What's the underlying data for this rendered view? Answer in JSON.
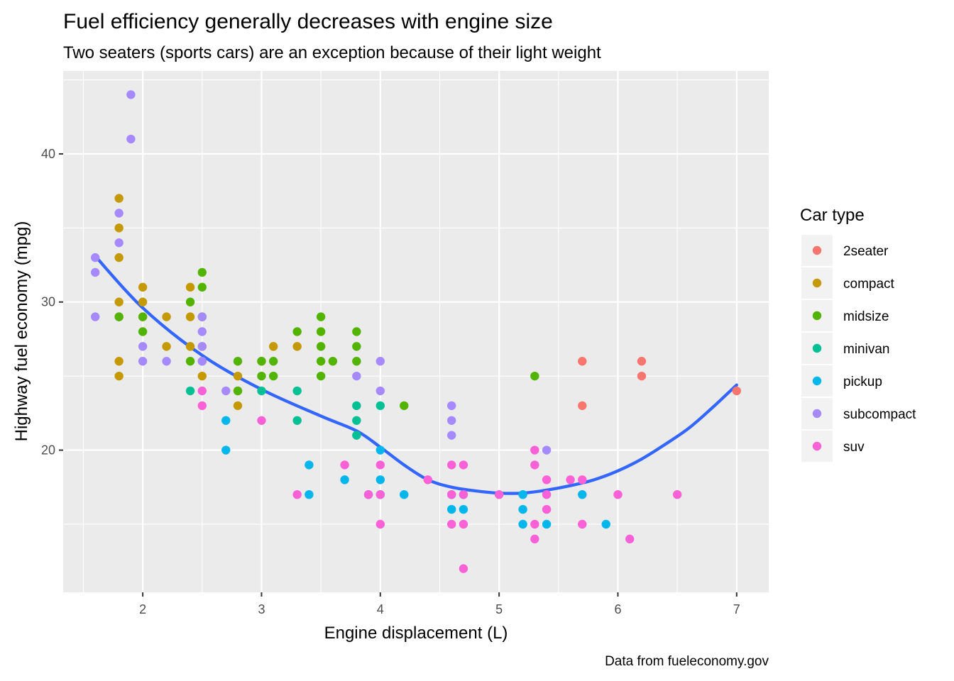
{
  "chart_data": {
    "type": "scatter",
    "title": "Fuel efficiency generally decreases with engine size",
    "subtitle": "Two seaters (sports cars) are an exception because of their light weight",
    "xlabel": "Engine displacement (L)",
    "ylabel": "Highway fuel economy (mpg)",
    "caption": "Data from fueleconomy.gov",
    "xlim": [
      1.33,
      7.27
    ],
    "ylim": [
      10.4,
      45.6
    ],
    "x_ticks": [
      2,
      3,
      4,
      5,
      6,
      7
    ],
    "y_ticks": [
      20,
      30,
      40
    ],
    "grid": true,
    "legend": {
      "title": "Car type",
      "position": "right",
      "items": [
        {
          "label": "2seater",
          "color": "#F8766D"
        },
        {
          "label": "compact",
          "color": "#C49A00"
        },
        {
          "label": "midsize",
          "color": "#53B400"
        },
        {
          "label": "minivan",
          "color": "#00C094"
        },
        {
          "label": "pickup",
          "color": "#00B6EB"
        },
        {
          "label": "subcompact",
          "color": "#A58AFF"
        },
        {
          "label": "suv",
          "color": "#FB61D7"
        }
      ]
    },
    "series": [
      {
        "name": "2seater",
        "points": [
          [
            5.7,
            26
          ],
          [
            5.7,
            23
          ],
          [
            6.2,
            26
          ],
          [
            6.2,
            25
          ],
          [
            7.0,
            24
          ]
        ]
      },
      {
        "name": "compact",
        "points": [
          [
            1.8,
            37
          ],
          [
            1.8,
            35
          ],
          [
            1.8,
            33
          ],
          [
            1.8,
            30
          ],
          [
            1.8,
            29
          ],
          [
            1.8,
            26
          ],
          [
            1.8,
            25
          ],
          [
            2.0,
            31
          ],
          [
            2.0,
            30
          ],
          [
            2.0,
            29
          ],
          [
            2.2,
            29
          ],
          [
            2.2,
            27
          ],
          [
            2.4,
            31
          ],
          [
            2.4,
            29
          ],
          [
            2.4,
            27
          ],
          [
            2.5,
            29
          ],
          [
            2.5,
            27
          ],
          [
            2.5,
            26
          ],
          [
            2.5,
            25
          ],
          [
            2.8,
            25
          ],
          [
            2.8,
            24
          ],
          [
            2.8,
            23
          ],
          [
            3.0,
            26
          ],
          [
            3.1,
            27
          ],
          [
            3.3,
            27
          ]
        ]
      },
      {
        "name": "midsize",
        "points": [
          [
            1.8,
            29
          ],
          [
            2.0,
            29
          ],
          [
            2.0,
            28
          ],
          [
            2.4,
            30
          ],
          [
            2.4,
            26
          ],
          [
            2.5,
            32
          ],
          [
            2.5,
            31
          ],
          [
            2.5,
            29
          ],
          [
            2.8,
            26
          ],
          [
            2.8,
            24
          ],
          [
            3.0,
            26
          ],
          [
            3.0,
            25
          ],
          [
            3.1,
            26
          ],
          [
            3.1,
            25
          ],
          [
            3.3,
            28
          ],
          [
            3.5,
            29
          ],
          [
            3.5,
            28
          ],
          [
            3.5,
            27
          ],
          [
            3.5,
            26
          ],
          [
            3.5,
            25
          ],
          [
            3.6,
            26
          ],
          [
            3.8,
            28
          ],
          [
            3.8,
            27
          ],
          [
            3.8,
            26
          ],
          [
            4.2,
            23
          ],
          [
            5.3,
            25
          ]
        ]
      },
      {
        "name": "minivan",
        "points": [
          [
            2.4,
            24
          ],
          [
            3.0,
            24
          ],
          [
            3.3,
            24
          ],
          [
            3.3,
            22
          ],
          [
            3.8,
            23
          ],
          [
            3.8,
            22
          ],
          [
            3.8,
            21
          ],
          [
            4.0,
            23
          ]
        ]
      },
      {
        "name": "pickup",
        "points": [
          [
            2.7,
            22
          ],
          [
            2.7,
            20
          ],
          [
            3.4,
            19
          ],
          [
            3.4,
            17
          ],
          [
            3.7,
            18
          ],
          [
            3.9,
            17
          ],
          [
            4.0,
            20
          ],
          [
            4.0,
            18
          ],
          [
            4.0,
            17
          ],
          [
            4.2,
            17
          ],
          [
            4.6,
            17
          ],
          [
            4.6,
            16
          ],
          [
            4.7,
            17
          ],
          [
            4.7,
            16
          ],
          [
            5.2,
            17
          ],
          [
            5.2,
            16
          ],
          [
            5.2,
            15
          ],
          [
            5.4,
            15
          ],
          [
            5.7,
            17
          ],
          [
            5.9,
            15
          ]
        ]
      },
      {
        "name": "subcompact",
        "points": [
          [
            1.6,
            33
          ],
          [
            1.6,
            32
          ],
          [
            1.6,
            29
          ],
          [
            1.8,
            36
          ],
          [
            1.8,
            34
          ],
          [
            1.9,
            44
          ],
          [
            1.9,
            41
          ],
          [
            2.0,
            27
          ],
          [
            2.0,
            26
          ],
          [
            2.2,
            26
          ],
          [
            2.5,
            29
          ],
          [
            2.5,
            28
          ],
          [
            2.5,
            27
          ],
          [
            2.5,
            26
          ],
          [
            2.7,
            24
          ],
          [
            3.8,
            25
          ],
          [
            4.0,
            26
          ],
          [
            4.0,
            24
          ],
          [
            4.6,
            23
          ],
          [
            4.6,
            22
          ],
          [
            4.6,
            21
          ],
          [
            5.4,
            20
          ]
        ]
      },
      {
        "name": "suv",
        "points": [
          [
            2.5,
            24
          ],
          [
            2.5,
            23
          ],
          [
            3.0,
            22
          ],
          [
            3.3,
            17
          ],
          [
            3.7,
            19
          ],
          [
            3.9,
            17
          ],
          [
            4.0,
            19
          ],
          [
            4.0,
            17
          ],
          [
            4.0,
            15
          ],
          [
            4.4,
            18
          ],
          [
            4.6,
            19
          ],
          [
            4.6,
            17
          ],
          [
            4.6,
            15
          ],
          [
            4.7,
            19
          ],
          [
            4.7,
            17
          ],
          [
            4.7,
            15
          ],
          [
            4.7,
            12
          ],
          [
            5.0,
            17
          ],
          [
            5.3,
            20
          ],
          [
            5.3,
            19
          ],
          [
            5.3,
            15
          ],
          [
            5.3,
            14
          ],
          [
            5.4,
            18
          ],
          [
            5.4,
            17
          ],
          [
            5.4,
            16
          ],
          [
            5.6,
            18
          ],
          [
            5.7,
            18
          ],
          [
            5.7,
            15
          ],
          [
            6.0,
            17
          ],
          [
            6.1,
            14
          ],
          [
            6.5,
            17
          ]
        ]
      }
    ],
    "smooth": {
      "color": "#3366FF",
      "points": [
        [
          1.6,
          33.1
        ],
        [
          2.0,
          29.6
        ],
        [
          2.5,
          26.4
        ],
        [
          3.0,
          24.1
        ],
        [
          3.5,
          22.3
        ],
        [
          3.8,
          21.3
        ],
        [
          4.0,
          20.2
        ],
        [
          4.2,
          19.0
        ],
        [
          4.4,
          18.0
        ],
        [
          4.6,
          17.5
        ],
        [
          4.8,
          17.25
        ],
        [
          5.0,
          17.1
        ],
        [
          5.2,
          17.1
        ],
        [
          5.4,
          17.3
        ],
        [
          5.6,
          17.6
        ],
        [
          5.8,
          18.0
        ],
        [
          6.0,
          18.6
        ],
        [
          6.2,
          19.4
        ],
        [
          6.4,
          20.4
        ],
        [
          6.6,
          21.5
        ],
        [
          6.8,
          22.9
        ],
        [
          7.0,
          24.4
        ]
      ]
    }
  }
}
